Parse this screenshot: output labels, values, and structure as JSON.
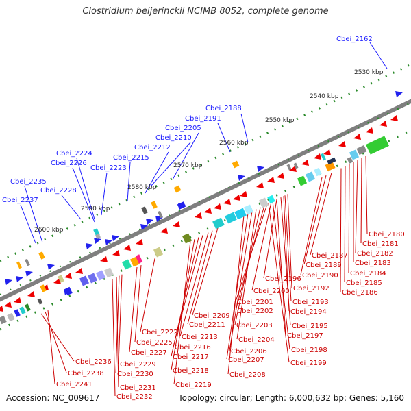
{
  "title": "Clostridium beijerinckii NCIMB 8052, complete genome",
  "footer": {
    "accession": "Accession: NC_009617",
    "stats": "Topology: circular; Length: 6,000,632 bp; Genes: 5,160"
  },
  "scale_labels": [
    "2530 kbp",
    "2540 kbp",
    "2550 kbp",
    "2560 kbp",
    "2570 kbp",
    "2580 kbp",
    "2590 kbp",
    "2600 kbp"
  ],
  "outer_genes": [
    "Cbei_2162",
    "Cbei_2188",
    "Cbei_2191",
    "Cbei_2205",
    "Cbei_2210",
    "Cbei_2212",
    "Cbei_2215",
    "Cbei_2223",
    "Cbei_2224",
    "Cbei_2226",
    "Cbei_2228",
    "Cbei_2235",
    "Cbei_2237"
  ],
  "inner_genes": [
    "Cbei_2180",
    "Cbei_2181",
    "Cbei_2182",
    "Cbei_2183",
    "Cbei_2184",
    "Cbei_2185",
    "Cbei_2186",
    "Cbei_2187",
    "Cbei_2189",
    "Cbei_2190",
    "Cbei_2196",
    "Cbei_2192",
    "Cbei_2200",
    "Cbei_2193",
    "Cbei_2201",
    "Cbei_2194",
    "Cbei_2202",
    "Cbei_2209",
    "Cbei_2195",
    "Cbei_2211",
    "Cbei_2203",
    "Cbei_2197",
    "Cbei_2213",
    "Cbei_2204",
    "Cbei_2222",
    "Cbei_2198",
    "Cbei_2225",
    "Cbei_2216",
    "Cbei_2206",
    "Cbei_2227",
    "Cbei_2217",
    "Cbei_2199",
    "Cbei_2207",
    "Cbei_2236",
    "Cbei_2229",
    "Cbei_2218",
    "Cbei_2230",
    "Cbei_2208",
    "Cbei_2238",
    "Cbei_2219",
    "Cbei_2241",
    "Cbei_2231",
    "Cbei_2232"
  ],
  "colors": {
    "label_outer": "#1a1aff",
    "label_inner": "#cc0000",
    "backbone": "#888888",
    "tick": "#2a8a2a",
    "cds_forward": "#2222ee",
    "cds_reverse": "#ee0000"
  }
}
